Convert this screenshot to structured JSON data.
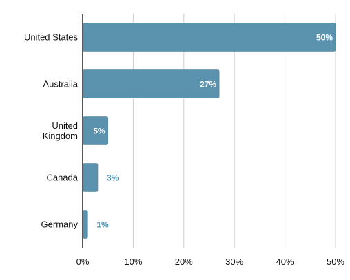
{
  "chart_data": {
    "type": "bar",
    "orientation": "horizontal",
    "categories": [
      [
        "United States"
      ],
      [
        "Australia"
      ],
      [
        "United",
        "Kingdom"
      ],
      [
        "Canada"
      ],
      [
        "Germany"
      ]
    ],
    "values": [
      50,
      27,
      5,
      3,
      1
    ],
    "value_labels": [
      "50%",
      "27%",
      "5%",
      "3%",
      "1%"
    ],
    "x_ticks": [
      "0%",
      "10%",
      "20%",
      "30%",
      "40%",
      "50%"
    ],
    "xlim": [
      0,
      50
    ],
    "title": "",
    "xlabel": "",
    "ylabel": "",
    "grid": "vertical",
    "legend": "none",
    "colors": {
      "bar": "#5b93ae",
      "bar_stroke": "#4a7f99",
      "label_inside": "#ffffff",
      "label_outside": "#4f8fb0",
      "grid": "#cfcfcf",
      "axis": "#222222"
    }
  }
}
